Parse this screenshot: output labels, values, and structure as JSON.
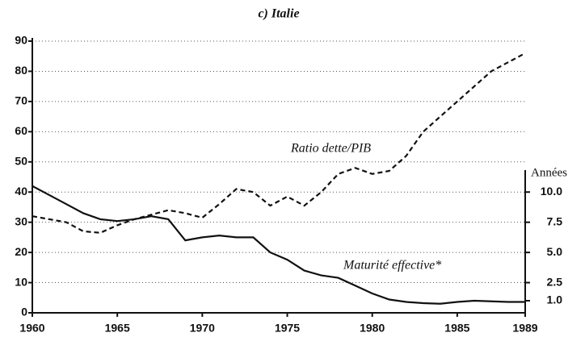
{
  "chart_data": {
    "type": "line",
    "title": "c) Italie",
    "y2_label": "Années",
    "x": [
      1960,
      1961,
      1962,
      1963,
      1964,
      1965,
      1966,
      1967,
      1968,
      1969,
      1970,
      1971,
      1972,
      1973,
      1974,
      1975,
      1976,
      1977,
      1978,
      1979,
      1980,
      1981,
      1982,
      1983,
      1984,
      1985,
      1986,
      1987,
      1988,
      1989
    ],
    "series": [
      {
        "name": "Ratio dette/PIB",
        "color": "#111",
        "dash": true,
        "values": [
          32,
          31,
          30,
          27,
          26.5,
          29,
          31,
          32.5,
          34,
          33,
          31.5,
          36,
          41,
          40,
          35.5,
          38.5,
          35.5,
          40,
          46,
          48,
          46,
          47,
          52,
          60,
          65,
          70,
          75,
          80,
          83,
          86
        ]
      },
      {
        "name": "Maturité effective*",
        "color": "#111",
        "dash": false,
        "axis": "y2",
        "values": [
          10.5,
          9.75,
          9,
          8.25,
          7.75,
          7.6,
          7.75,
          8,
          7.75,
          6,
          6.25,
          6.4,
          6.25,
          6.25,
          5,
          4.4,
          3.5,
          3.1,
          2.9,
          2.25,
          1.6,
          1.1,
          0.9,
          0.8,
          0.75,
          0.9,
          1,
          0.95,
          0.9,
          0.9
        ]
      }
    ],
    "xlim": [
      1960,
      1989
    ],
    "xticks": [
      1960,
      1965,
      1970,
      1975,
      1980,
      1985,
      1989
    ],
    "ylim": [
      0,
      90
    ],
    "yticks": [
      0,
      10,
      20,
      30,
      40,
      50,
      60,
      70,
      80,
      90
    ],
    "y2lim": [
      0,
      22.5
    ],
    "y2ticks": [
      {
        "value": 10,
        "label": "10.0"
      },
      7.5,
      {
        "value": 5,
        "label": "5.0"
      },
      2.5,
      {
        "value": 1,
        "label": "1.0"
      }
    ],
    "grid": true
  }
}
